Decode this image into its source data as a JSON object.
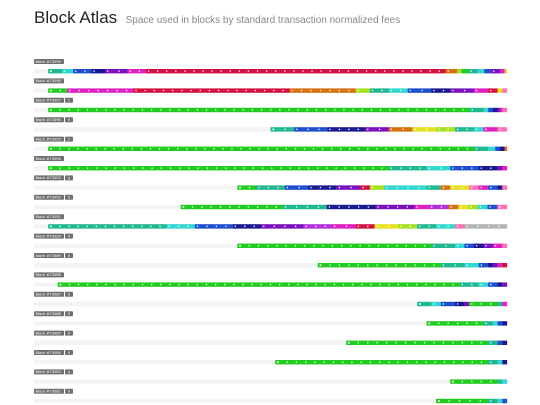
{
  "header": {
    "title": "Block Atlas",
    "subtitle": "Space used in blocks by standard transaction normalized fees"
  },
  "chart_data": {
    "type": "bar",
    "title": "Block Atlas",
    "subtitle": "Space used in blocks by standard transaction normalized fees",
    "xlim": [
      0,
      1
    ],
    "colors": {
      "green": "#20cc20",
      "teal": "#20b890",
      "cyan": "#30d8d0",
      "blue": "#1e4fd0",
      "navy": "#1a1a90",
      "purple": "#7a10c0",
      "violet": "#b030e0",
      "magenta": "#e020c0",
      "red": "#d41040",
      "orange": "#d87010",
      "yellow": "#e6e020",
      "lime": "#a8e020",
      "pink": "#ff70b0",
      "gray": "#b4b4b4",
      "label_bg": "#707070"
    },
    "blocks": [
      {
        "label": "Block #73099",
        "badge": "",
        "fill": 0.97,
        "segments": [
          [
            "teal",
            0.03
          ],
          [
            "cyan",
            0.025
          ],
          [
            "blue",
            0.04
          ],
          [
            "navy",
            0.03
          ],
          [
            "purple",
            0.05
          ],
          [
            "magenta",
            0.04
          ],
          [
            "red",
            0.66
          ],
          [
            "orange",
            0.025
          ],
          [
            "lime",
            0.01
          ],
          [
            "green",
            0.015
          ],
          [
            "teal",
            0.02
          ],
          [
            "cyan",
            0.015
          ],
          [
            "blue",
            0.015
          ],
          [
            "purple",
            0.02
          ],
          [
            "magenta",
            0.01
          ],
          [
            "yellow",
            0.005
          ]
        ]
      },
      {
        "label": "Block #73098",
        "badge": "",
        "fill": 0.97,
        "segments": [
          [
            "green",
            0.04
          ],
          [
            "magenta",
            0.14
          ],
          [
            "red",
            0.33
          ],
          [
            "orange",
            0.14
          ],
          [
            "lime",
            0.03
          ],
          [
            "teal",
            0.04
          ],
          [
            "cyan",
            0.04
          ],
          [
            "blue",
            0.05
          ],
          [
            "navy",
            0.04
          ],
          [
            "purple",
            0.05
          ],
          [
            "magenta",
            0.03
          ],
          [
            "red",
            0.02
          ],
          [
            "yellow",
            0.01
          ],
          [
            "pink",
            0.01
          ]
        ]
      },
      {
        "label": "Block #73097",
        "badge": "1",
        "fill": 0.97,
        "segments": [
          [
            "green",
            0.9
          ],
          [
            "teal",
            0.03
          ],
          [
            "cyan",
            0.01
          ],
          [
            "blue",
            0.01
          ],
          [
            "navy",
            0.01
          ],
          [
            "purple",
            0.005
          ],
          [
            "magenta",
            0.005
          ],
          [
            "pink",
            0.01
          ]
        ]
      },
      {
        "label": "Block #73096",
        "badge": "0",
        "fill": 0.5,
        "segments": [
          [
            "teal",
            0.05
          ],
          [
            "blue",
            0.07
          ],
          [
            "navy",
            0.08
          ],
          [
            "purple",
            0.05
          ],
          [
            "orange",
            0.05
          ],
          [
            "yellow",
            0.05
          ],
          [
            "lime",
            0.04
          ],
          [
            "teal",
            0.04
          ],
          [
            "cyan",
            0.02
          ],
          [
            "magenta",
            0.03
          ],
          [
            "pink",
            0.02
          ]
        ]
      },
      {
        "label": "Block #73095",
        "badge": "1",
        "fill": 0.97,
        "segments": [
          [
            "green",
            0.9
          ],
          [
            "teal",
            0.03
          ],
          [
            "cyan",
            0.015
          ],
          [
            "blue",
            0.01
          ],
          [
            "navy",
            0.01
          ],
          [
            "orange",
            0.005
          ]
        ]
      },
      {
        "label": "Block #73094",
        "badge": "",
        "fill": 0.97,
        "segments": [
          [
            "green",
            0.72
          ],
          [
            "teal",
            0.08
          ],
          [
            "cyan",
            0.05
          ],
          [
            "blue",
            0.06
          ],
          [
            "navy",
            0.04
          ],
          [
            "purple",
            0.01
          ],
          [
            "magenta",
            0.01
          ]
        ]
      },
      {
        "label": "Block #73093",
        "badge": "0",
        "fill": 0.57,
        "segments": [
          [
            "green",
            0.04
          ],
          [
            "teal",
            0.06
          ],
          [
            "blue",
            0.05
          ],
          [
            "navy",
            0.06
          ],
          [
            "purple",
            0.05
          ],
          [
            "red",
            0.02
          ],
          [
            "lime",
            0.03
          ],
          [
            "cyan",
            0.09
          ],
          [
            "teal",
            0.03
          ],
          [
            "orange",
            0.02
          ],
          [
            "yellow",
            0.04
          ],
          [
            "pink",
            0.02
          ],
          [
            "magenta",
            0.02
          ],
          [
            "blue",
            0.02
          ],
          [
            "navy",
            0.01
          ],
          [
            "pink",
            0.01
          ]
        ]
      },
      {
        "label": "Block #73092",
        "badge": "0",
        "fill": 0.69,
        "segments": [
          [
            "green",
            0.21
          ],
          [
            "teal",
            0.09
          ],
          [
            "navy",
            0.1
          ],
          [
            "purple",
            0.08
          ],
          [
            "magenta",
            0.03
          ],
          [
            "violet",
            0.04
          ],
          [
            "orange",
            0.02
          ],
          [
            "yellow",
            0.02
          ],
          [
            "lime",
            0.02
          ],
          [
            "cyan",
            0.02
          ],
          [
            "blue",
            0.02
          ],
          [
            "pink",
            0.02
          ]
        ]
      },
      {
        "label": "Block #73091",
        "badge": "",
        "fill": 0.97,
        "segments": [
          [
            "teal",
            0.25
          ],
          [
            "cyan",
            0.06
          ],
          [
            "blue",
            0.08
          ],
          [
            "navy",
            0.06
          ],
          [
            "purple",
            0.09
          ],
          [
            "violet",
            0.06
          ],
          [
            "magenta",
            0.05
          ],
          [
            "red",
            0.04
          ],
          [
            "yellow",
            0.05
          ],
          [
            "lime",
            0.04
          ],
          [
            "teal",
            0.04
          ],
          [
            "cyan",
            0.04
          ],
          [
            "pink",
            0.02
          ],
          [
            "gray",
            0.09
          ]
        ]
      },
      {
        "label": "Block #73090",
        "badge": "0",
        "fill": 0.57,
        "segments": [
          [
            "green",
            0.41
          ],
          [
            "teal",
            0.05
          ],
          [
            "cyan",
            0.02
          ],
          [
            "blue",
            0.02
          ],
          [
            "navy",
            0.02
          ],
          [
            "purple",
            0.02
          ],
          [
            "magenta",
            0.02
          ],
          [
            "pink",
            0.01
          ]
        ]
      },
      {
        "label": "Block #73089",
        "badge": "0",
        "fill": 0.4,
        "segments": [
          [
            "green",
            0.26
          ],
          [
            "teal",
            0.05
          ],
          [
            "cyan",
            0.03
          ],
          [
            "blue",
            0.02
          ],
          [
            "navy",
            0.01
          ],
          [
            "purple",
            0.01
          ],
          [
            "magenta",
            0.01
          ],
          [
            "red",
            0.01
          ]
        ]
      },
      {
        "label": "Block #73088",
        "badge": "",
        "fill": 0.95,
        "segments": [
          [
            "green",
            0.85
          ],
          [
            "teal",
            0.04
          ],
          [
            "cyan",
            0.02
          ],
          [
            "blue",
            0.02
          ],
          [
            "navy",
            0.01
          ],
          [
            "purple",
            0.01
          ]
        ]
      },
      {
        "label": "Block #73087",
        "badge": "0",
        "fill": 0.19,
        "segments": [
          [
            "teal",
            0.03
          ],
          [
            "cyan",
            0.02
          ],
          [
            "blue",
            0.03
          ],
          [
            "navy",
            0.02
          ],
          [
            "purple",
            0.01
          ],
          [
            "green",
            0.06
          ],
          [
            "teal",
            0.01
          ],
          [
            "magenta",
            0.01
          ]
        ]
      },
      {
        "label": "Block #73086",
        "badge": "0",
        "fill": 0.17,
        "segments": [
          [
            "green",
            0.12
          ],
          [
            "teal",
            0.02
          ],
          [
            "cyan",
            0.01
          ],
          [
            "blue",
            0.01
          ],
          [
            "navy",
            0.01
          ]
        ]
      },
      {
        "label": "Block #73085",
        "badge": "0",
        "fill": 0.34,
        "segments": [
          [
            "green",
            0.3
          ],
          [
            "teal",
            0.02
          ],
          [
            "blue",
            0.01
          ],
          [
            "navy",
            0.01
          ]
        ]
      },
      {
        "label": "Block #73084",
        "badge": "0",
        "fill": 0.49,
        "segments": [
          [
            "green",
            0.45
          ],
          [
            "teal",
            0.02
          ],
          [
            "cyan",
            0.01
          ],
          [
            "navy",
            0.01
          ]
        ]
      },
      {
        "label": "Block #73083",
        "badge": "0",
        "fill": 0.12,
        "segments": [
          [
            "green",
            0.1
          ],
          [
            "teal",
            0.01
          ],
          [
            "cyan",
            0.01
          ]
        ]
      },
      {
        "label": "Block #73082",
        "badge": "0",
        "fill": 0.15,
        "segments": [
          [
            "green",
            0.11
          ],
          [
            "teal",
            0.02
          ],
          [
            "cyan",
            0.01
          ],
          [
            "blue",
            0.01
          ]
        ]
      }
    ]
  }
}
